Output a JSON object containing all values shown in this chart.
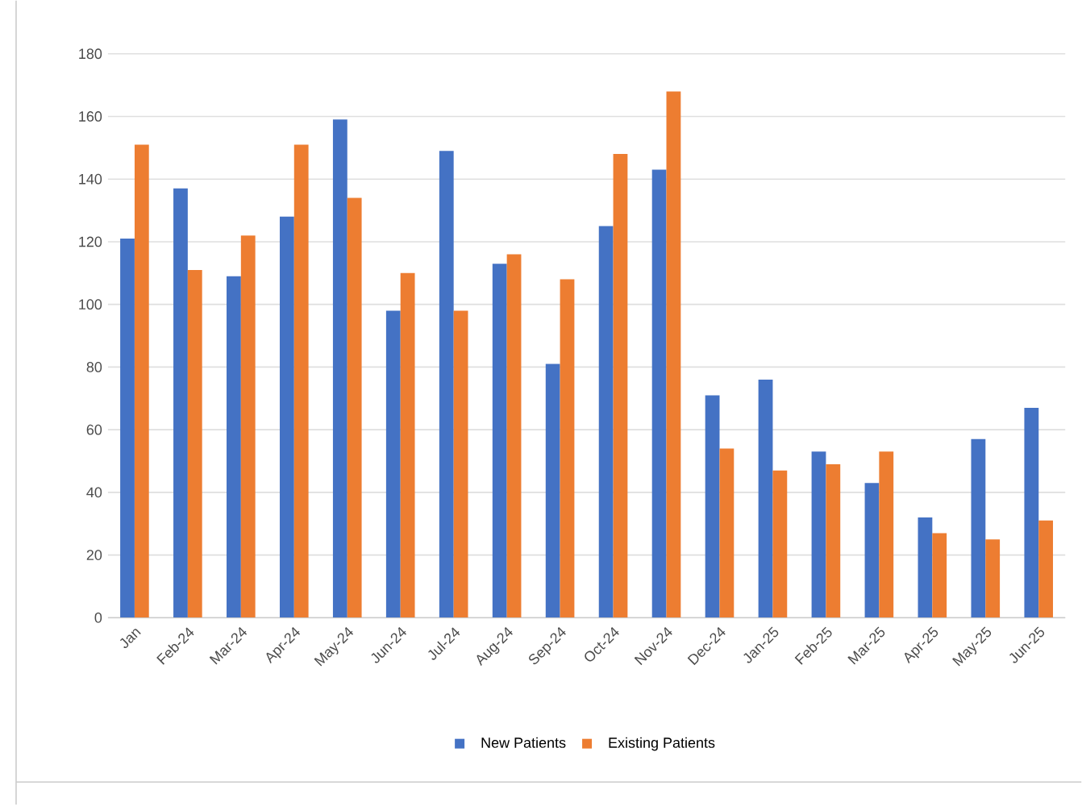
{
  "chart_data": {
    "type": "bar",
    "categories": [
      "Jan",
      "Feb-24",
      "Mar-24",
      "Apr-24",
      "May-24",
      "Jun-24",
      "Jul-24",
      "Aug-24",
      "Sep-24",
      "Oct-24",
      "Nov-24",
      "Dec-24",
      "Jan-25",
      "Feb-25",
      "Mar-25",
      "Apr-25",
      "May-25",
      "Jun-25"
    ],
    "series": [
      {
        "name": "New Patients",
        "color": "#4472c4",
        "values": [
          121,
          137,
          109,
          128,
          159,
          98,
          149,
          113,
          81,
          125,
          143,
          71,
          76,
          53,
          43,
          32,
          57,
          67
        ]
      },
      {
        "name": "Existing Patients",
        "color": "#ed7d31",
        "values": [
          151,
          111,
          122,
          151,
          134,
          110,
          98,
          116,
          108,
          148,
          168,
          54,
          47,
          49,
          53,
          27,
          25,
          31
        ]
      }
    ],
    "ylim": [
      0,
      180
    ],
    "yticks": [
      0,
      20,
      40,
      60,
      80,
      100,
      120,
      140,
      160,
      180
    ],
    "grid": "y",
    "legend": "bottom"
  }
}
